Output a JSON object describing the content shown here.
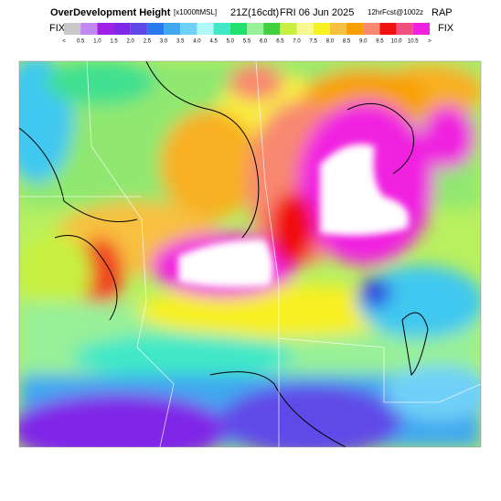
{
  "header": {
    "title": "OverDevelopment Height",
    "units": "[x1000ftMSL]",
    "valid": "21Z(16cdt)",
    "date": "FRI 06 Jun 2025",
    "forecast": "12hrFcst@1002z",
    "model": "RAP"
  },
  "legend": {
    "left_label": "FIX",
    "right_label": "FIX",
    "colors": [
      "#c8c8c8",
      "#c088f0",
      "#a020e8",
      "#8028e8",
      "#6048e8",
      "#2878f0",
      "#40a8f0",
      "#70d0f8",
      "#b0f8f8",
      "#40e8c8",
      "#20e070",
      "#98f098",
      "#40d040",
      "#c8f040",
      "#f8f890",
      "#f8f020",
      "#f8c040",
      "#f8a000",
      "#f88870",
      "#f01010",
      "#f05080",
      "#f020e0"
    ],
    "labels": [
      "<",
      "0.5",
      "1.0",
      "1.5",
      "2.0",
      "2.5",
      "3.0",
      "3.5",
      "4.0",
      "4.5",
      "5.0",
      "5.5",
      "6.0",
      "6.5",
      "7.0",
      "7.5",
      "8.0",
      "8.5",
      "9.0",
      "9.5",
      "10.0",
      "10.5",
      ">"
    ]
  }
}
